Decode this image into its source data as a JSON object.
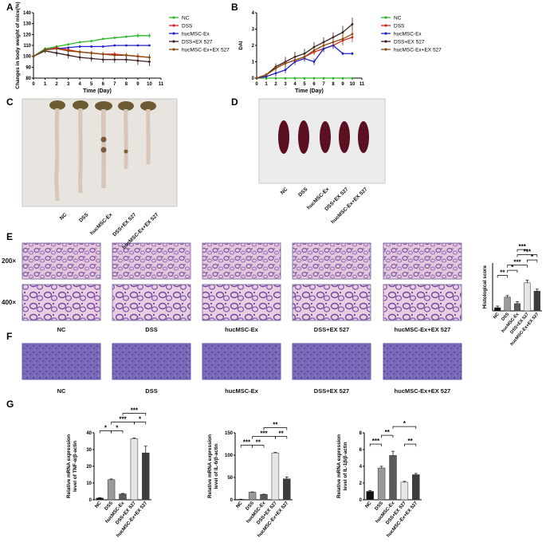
{
  "panel_letters": {
    "a": "A",
    "b": "B",
    "c": "C",
    "d": "D",
    "e": "E",
    "f": "F",
    "g": "G"
  },
  "colors": {
    "nc": "#2eb82e",
    "dss": "#e02020",
    "hucmsc": "#2020c8",
    "dss_ex": "#3b1f1f",
    "huc_ex": "#8a4a10",
    "bar_nc": "#111111",
    "bar_dss": "#9a9a9a",
    "bar_huc": "#5a5a5a",
    "bar_dss_ex": "#e6e6e6",
    "bar_huc_ex": "#3c3c3c"
  },
  "groups": [
    "NC",
    "DSS",
    "hucMSC-Ex",
    "DSS+EX 527",
    "hucMSC-Ex+EX 527"
  ],
  "legend": [
    "NC",
    "DSS",
    "hucMSC-Ex",
    "DSS+EX 527",
    "hucMSC-Ex+EX 527"
  ],
  "magnifications": [
    "200×",
    "400×"
  ],
  "chart_data": [
    {
      "id": "A",
      "type": "line",
      "title": "",
      "xlabel": "Time (Day)",
      "ylabel": "Changes in body weight of mice(%)",
      "xlim": [
        0,
        11
      ],
      "ylim": [
        80,
        140
      ],
      "xticks": [
        "0",
        "1",
        "2",
        "3",
        "4",
        "5",
        "6",
        "7",
        "8",
        "9",
        "10",
        "11"
      ],
      "yticks": [
        "80",
        "90",
        "100",
        "110",
        "120",
        "130",
        "140"
      ],
      "x": [
        0,
        1,
        2,
        3,
        4,
        5,
        6,
        7,
        8,
        9,
        10
      ],
      "series": [
        {
          "name": "NC",
          "values": [
            100,
            107,
            109,
            111,
            113,
            114,
            116,
            117,
            118,
            119,
            119
          ],
          "err": [
            0,
            1,
            1,
            1,
            1,
            1,
            1,
            1,
            1,
            2,
            2
          ]
        },
        {
          "name": "DSS",
          "values": [
            100,
            106,
            108,
            106,
            104,
            103,
            102,
            102,
            101,
            100,
            99
          ],
          "err": [
            0,
            2,
            2,
            2,
            2,
            2,
            2,
            2,
            2,
            2,
            2
          ]
        },
        {
          "name": "hucMSC-Ex",
          "values": [
            100,
            106,
            107,
            108,
            109,
            109,
            109,
            110,
            110,
            110,
            110
          ],
          "err": [
            0,
            1,
            1,
            1,
            1,
            1,
            1,
            1,
            1,
            1,
            1
          ]
        },
        {
          "name": "DSS+EX 527",
          "values": [
            100,
            105,
            103,
            101,
            99,
            98,
            97,
            97,
            97,
            96,
            95
          ],
          "err": [
            0,
            2,
            3,
            3,
            3,
            3,
            3,
            3,
            3,
            4,
            4
          ]
        },
        {
          "name": "hucMSC-Ex+EX 527",
          "values": [
            100,
            106,
            107,
            105,
            104,
            103,
            102,
            101,
            101,
            100,
            99
          ],
          "err": [
            0,
            2,
            2,
            2,
            2,
            2,
            2,
            2,
            2,
            3,
            3
          ]
        }
      ]
    },
    {
      "id": "B",
      "type": "line",
      "title": "",
      "xlabel": "Time (Day)",
      "ylabel": "DAI",
      "xlim": [
        0,
        11
      ],
      "ylim": [
        0,
        4
      ],
      "xticks": [
        "0",
        "1",
        "2",
        "3",
        "4",
        "5",
        "6",
        "7",
        "8",
        "9",
        "10",
        "11"
      ],
      "yticks": [
        "0",
        "1",
        "2",
        "3",
        "4"
      ],
      "x": [
        0,
        1,
        2,
        3,
        4,
        5,
        6,
        7,
        8,
        9,
        10
      ],
      "series": [
        {
          "name": "NC",
          "values": [
            0,
            0,
            0,
            0,
            0,
            0,
            0,
            0,
            0,
            0,
            0
          ],
          "err": [
            0,
            0,
            0,
            0,
            0,
            0,
            0,
            0,
            0,
            0,
            0
          ]
        },
        {
          "name": "DSS",
          "values": [
            0,
            0.2,
            0.6,
            0.9,
            1.1,
            1.3,
            1.6,
            1.8,
            2.0,
            2.3,
            2.5
          ],
          "err": [
            0,
            0.1,
            0.2,
            0.2,
            0.2,
            0.2,
            0.2,
            0.2,
            0.2,
            0.3,
            0.3
          ]
        },
        {
          "name": "hucMSC-Ex",
          "values": [
            0,
            0.1,
            0.3,
            0.5,
            1.0,
            1.2,
            1.0,
            1.8,
            2.0,
            1.5,
            1.5
          ],
          "err": [
            0,
            0.1,
            0.2,
            0.2,
            0.2,
            0.2,
            0.2,
            0.2,
            0.2,
            0.1,
            0.1
          ]
        },
        {
          "name": "DSS+EX 527",
          "values": [
            0,
            0.2,
            0.7,
            1.0,
            1.3,
            1.5,
            1.9,
            2.2,
            2.5,
            2.8,
            3.3
          ],
          "err": [
            0,
            0.1,
            0.2,
            0.3,
            0.3,
            0.3,
            0.3,
            0.3,
            0.3,
            0.4,
            0.4
          ]
        },
        {
          "name": "hucMSC-Ex+EX 527",
          "values": [
            0,
            0.2,
            0.6,
            0.9,
            1.1,
            1.3,
            1.7,
            2.0,
            2.2,
            2.4,
            2.7
          ],
          "err": [
            0,
            0.1,
            0.2,
            0.2,
            0.2,
            0.2,
            0.2,
            0.2,
            0.3,
            0.3,
            0.3
          ]
        }
      ]
    },
    {
      "id": "E-score",
      "type": "bar",
      "title": "",
      "ylabel": "Histological score",
      "categories": [
        "NC",
        "DSS",
        "hucMSC-Ex",
        "DSS+EX 527",
        "hucMSC-Ex+EX 527"
      ],
      "values": [
        1,
        4.3,
        2.3,
        8.8,
        6.2
      ],
      "err": [
        0.5,
        0.5,
        0.6,
        0.8,
        0.6
      ],
      "ylim": [
        0,
        15
      ],
      "sig": [
        {
          "from": 0,
          "to": 1,
          "label": "**",
          "level": 0
        },
        {
          "from": 1,
          "to": 2,
          "label": "*",
          "level": 1
        },
        {
          "from": 1,
          "to": 3,
          "label": "***",
          "level": 2
        },
        {
          "from": 3,
          "to": 4,
          "label": "*",
          "level": 3
        },
        {
          "from": 2,
          "to": 4,
          "label": "***",
          "level": 4
        },
        {
          "from": 2,
          "to": 3,
          "label": "***",
          "level": 5
        }
      ]
    },
    {
      "id": "G-TNF",
      "type": "bar",
      "title": "",
      "ylabel": [
        "Relative mRNA expression",
        "level of TNF-α/β-actin"
      ],
      "categories": [
        "NC",
        "DSS",
        "hucMSC-Ex",
        "DSS+EX 527",
        "hucMSC-Ex+EX 527"
      ],
      "values": [
        1,
        12,
        3.5,
        36.5,
        28
      ],
      "err": [
        0.3,
        0.4,
        0.3,
        0.4,
        4
      ],
      "ylim": [
        0,
        40
      ],
      "yticks": [
        "0",
        "10",
        "20",
        "30",
        "40"
      ],
      "sig": [
        {
          "from": 0,
          "to": 1,
          "label": "*",
          "level": 0
        },
        {
          "from": 1,
          "to": 2,
          "label": "*",
          "level": 0
        },
        {
          "from": 1,
          "to": 3,
          "label": "***",
          "level": 1
        },
        {
          "from": 3,
          "to": 4,
          "label": "*",
          "level": 1
        },
        {
          "from": 2,
          "to": 4,
          "label": "***",
          "level": 2
        }
      ]
    },
    {
      "id": "G-IL6",
      "type": "bar",
      "title": "",
      "ylabel": [
        "Relative mRNA expression",
        "level of IL-6/β-actin"
      ],
      "categories": [
        "NC",
        "DSS",
        "hucMSC-Ex",
        "DSS+EX 527",
        "hucMSC-Ex+EX 527"
      ],
      "values": [
        1,
        17,
        12,
        105,
        47
      ],
      "err": [
        0.3,
        0.6,
        0.6,
        1,
        4
      ],
      "ylim": [
        0,
        150
      ],
      "yticks": [
        "0",
        "50",
        "100",
        "150"
      ],
      "sig": [
        {
          "from": 0,
          "to": 1,
          "label": "***",
          "level": 0
        },
        {
          "from": 1,
          "to": 2,
          "label": "**",
          "level": 0
        },
        {
          "from": 1,
          "to": 3,
          "label": "***",
          "level": 1
        },
        {
          "from": 3,
          "to": 4,
          "label": "**",
          "level": 1
        },
        {
          "from": 2,
          "to": 4,
          "label": "**",
          "level": 2
        }
      ]
    },
    {
      "id": "G-IL1b",
      "type": "bar",
      "title": "",
      "ylabel": [
        "Relative mRNA expression",
        "level of IL-1β/β-actin"
      ],
      "categories": [
        "NC",
        "DSS",
        "hucMSC-Ex",
        "DSS+EX 527",
        "hucMSC-Ex+EX 527"
      ],
      "values": [
        1,
        3.8,
        5.3,
        2.1,
        3
      ],
      "err": [
        0.1,
        0.2,
        0.5,
        0.1,
        0.15
      ],
      "ylim": [
        0,
        8
      ],
      "yticks": [
        "0",
        "2",
        "4",
        "6",
        "8"
      ],
      "sig": [
        {
          "from": 0,
          "to": 1,
          "label": "***",
          "level": 0
        },
        {
          "from": 3,
          "to": 4,
          "label": "**",
          "level": 0
        },
        {
          "from": 1,
          "to": 2,
          "label": "**",
          "level": 1
        },
        {
          "from": 2,
          "to": 4,
          "label": "*",
          "level": 2
        }
      ]
    }
  ]
}
